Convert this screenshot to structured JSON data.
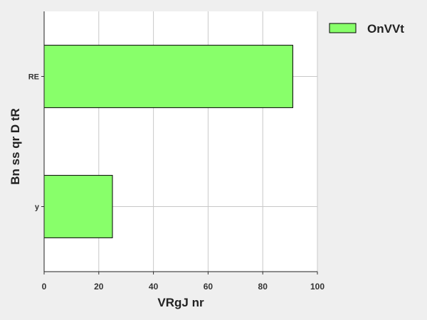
{
  "chart_data": {
    "type": "bar",
    "orientation": "horizontal",
    "title": "",
    "xlabel": "VRgJ nr",
    "ylabel": "Bn ss qr D tR",
    "xlim": [
      0,
      100
    ],
    "x_ticks": [
      "0",
      "20",
      "40",
      "60",
      "80",
      "100"
    ],
    "categories": [
      "RE",
      "y"
    ],
    "series": [
      {
        "name": "OnVVt",
        "values": [
          91,
          25
        ],
        "color": "#88ff6a"
      }
    ],
    "grid": true,
    "legend_position": "top-right-outside"
  }
}
